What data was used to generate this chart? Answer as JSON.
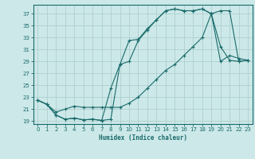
{
  "xlabel": "Humidex (Indice chaleur)",
  "bg_color": "#cce8e8",
  "line_color": "#1a6b6b",
  "grid_color": "#b0d0d0",
  "xlim": [
    -0.5,
    23.5
  ],
  "ylim": [
    18.5,
    38.5
  ],
  "xticks": [
    0,
    1,
    2,
    3,
    4,
    5,
    6,
    7,
    8,
    9,
    10,
    11,
    12,
    13,
    14,
    15,
    16,
    17,
    18,
    19,
    20,
    21,
    22,
    23
  ],
  "yticks": [
    19,
    21,
    23,
    25,
    27,
    29,
    31,
    33,
    35,
    37
  ],
  "curve1_x": [
    0,
    1,
    2,
    3,
    4,
    5,
    6,
    7,
    8,
    9,
    10,
    11,
    12,
    13,
    14,
    15,
    16,
    17,
    18,
    19,
    20,
    21,
    22,
    23
  ],
  "curve1_y": [
    22.5,
    21.8,
    20.0,
    19.3,
    19.5,
    19.2,
    19.3,
    19.1,
    19.3,
    28.5,
    29.0,
    32.5,
    34.3,
    36.0,
    37.5,
    37.8,
    37.5,
    37.5,
    37.8,
    37.0,
    29.0,
    30.0,
    29.5,
    29.2
  ],
  "curve2_x": [
    0,
    1,
    2,
    3,
    4,
    5,
    6,
    7,
    8,
    9,
    10,
    11,
    12,
    13,
    14,
    15,
    16,
    17,
    18,
    19,
    20,
    21,
    22,
    23
  ],
  "curve2_y": [
    22.5,
    21.8,
    20.0,
    19.3,
    19.5,
    19.2,
    19.3,
    19.1,
    24.5,
    28.5,
    32.5,
    32.7,
    34.5,
    36.0,
    37.5,
    37.8,
    37.5,
    37.5,
    37.8,
    37.0,
    31.5,
    29.2,
    29.0,
    29.2
  ],
  "curve3_x": [
    0,
    1,
    2,
    3,
    4,
    5,
    6,
    7,
    8,
    9,
    10,
    11,
    12,
    13,
    14,
    15,
    16,
    17,
    18,
    19,
    20,
    21,
    22,
    23
  ],
  "curve3_y": [
    22.5,
    21.8,
    20.5,
    21.0,
    21.5,
    21.3,
    21.3,
    21.3,
    21.3,
    21.3,
    22.0,
    23.0,
    24.5,
    26.0,
    27.5,
    28.5,
    30.0,
    31.5,
    33.0,
    37.0,
    37.5,
    37.5,
    29.0,
    29.2
  ]
}
